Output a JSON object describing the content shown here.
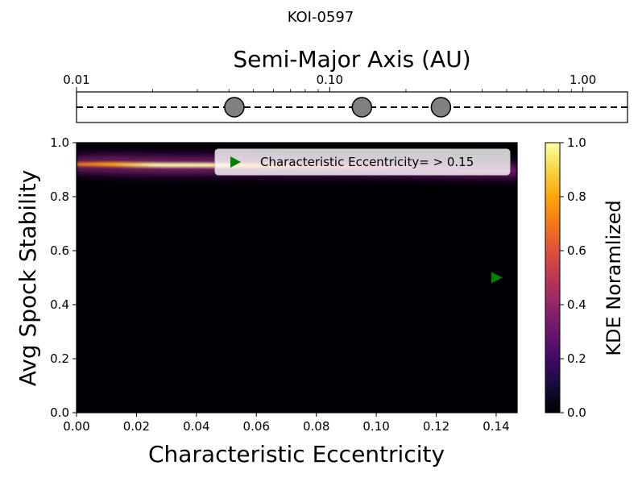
{
  "figure": {
    "suptitle": "KOI-0597"
  },
  "chart_data": [
    {
      "type": "scatter",
      "panel": "orbit-strip",
      "xlabel": "Semi-Major Axis (AU)",
      "xscale": "log",
      "xlim": [
        0.01,
        1.5
      ],
      "xticks": [
        0.01,
        0.1,
        1.0
      ],
      "xticklabels": [
        "0.01",
        "0.10",
        "1.00"
      ],
      "yticks": [],
      "planets": {
        "x": [
          0.042,
          0.134,
          0.275
        ],
        "color": "#808080"
      },
      "line_style": "dashed"
    },
    {
      "type": "heatmap",
      "panel": "kde-map",
      "xlabel": "Characteristic Eccentricity",
      "ylabel": "Avg Spock Stability",
      "xlim": [
        0.0,
        0.147
      ],
      "ylim": [
        0.0,
        1.0
      ],
      "xticks": [
        0.0,
        0.02,
        0.04,
        0.06,
        0.08,
        0.1,
        0.12,
        0.14
      ],
      "xticklabels": [
        "0.00",
        "0.02",
        "0.04",
        "0.06",
        "0.08",
        "0.10",
        "0.12",
        "0.14"
      ],
      "yticks": [
        0.0,
        0.2,
        0.4,
        0.6,
        0.8,
        1.0
      ],
      "yticklabels": [
        "0.0",
        "0.2",
        "0.4",
        "0.6",
        "0.8",
        "1.0"
      ],
      "colormap": "inferno",
      "kde_ridge": {
        "x": [
          0.0,
          0.01,
          0.02,
          0.03,
          0.04,
          0.05,
          0.06,
          0.07,
          0.08,
          0.09,
          0.1,
          0.11,
          0.12,
          0.13,
          0.14,
          0.147
        ],
        "y": [
          0.92,
          0.92,
          0.918,
          0.917,
          0.917,
          0.916,
          0.915,
          0.913,
          0.912,
          0.91,
          0.908,
          0.905,
          0.903,
          0.9,
          0.898,
          0.896
        ],
        "density": [
          0.55,
          0.9,
          1.0,
          1.0,
          0.98,
          0.92,
          0.82,
          0.72,
          0.65,
          0.58,
          0.5,
          0.42,
          0.35,
          0.28,
          0.22,
          0.18
        ]
      },
      "marker": {
        "x": 0.14,
        "y": 0.5,
        "shape": "right-triangle",
        "color": "#008000"
      },
      "legend": {
        "label": "Characteristic Eccentricity= > 0.15",
        "position": "upper right"
      },
      "colorbar": {
        "label": "KDE Noramlized",
        "range": [
          0.0,
          1.0
        ],
        "ticks": [
          0.0,
          0.2,
          0.4,
          0.6,
          0.8,
          1.0
        ],
        "ticklabels": [
          "0.0",
          "0.2",
          "0.4",
          "0.6",
          "0.8",
          "1.0"
        ]
      }
    }
  ]
}
